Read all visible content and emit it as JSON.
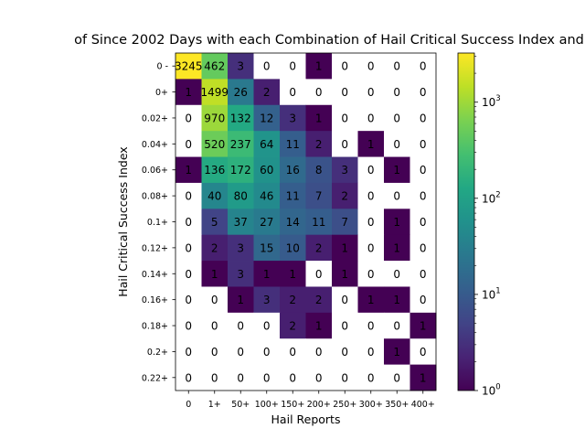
{
  "chart_data": {
    "type": "heatmap",
    "title": "of Since 2002 Days with each Combination of Hail Critical Success Index and",
    "xlabel": "Hail Reports",
    "ylabel": "Hail Critical Success Index",
    "x_categories": [
      "0",
      "1+",
      "50+",
      "100+",
      "150+",
      "200+",
      "250+",
      "300+",
      "350+",
      "400+"
    ],
    "y_categories": [
      "0 -",
      "0+",
      "0.02+",
      "0.04+",
      "0.06+",
      "0.08+",
      "0.1+",
      "0.12+",
      "0.14+",
      "0.16+",
      "0.18+",
      "0.2+",
      "0.22+"
    ],
    "values": [
      [
        3245,
        462,
        3,
        0,
        0,
        1,
        0,
        0,
        0,
        0
      ],
      [
        1,
        1499,
        26,
        2,
        0,
        0,
        0,
        0,
        0,
        0
      ],
      [
        0,
        970,
        132,
        12,
        3,
        1,
        0,
        0,
        0,
        0
      ],
      [
        0,
        520,
        237,
        64,
        11,
        2,
        0,
        1,
        0,
        0
      ],
      [
        1,
        136,
        172,
        60,
        16,
        8,
        3,
        0,
        1,
        0
      ],
      [
        0,
        40,
        80,
        46,
        11,
        7,
        2,
        0,
        0,
        0
      ],
      [
        0,
        5,
        37,
        27,
        14,
        11,
        7,
        0,
        1,
        0
      ],
      [
        0,
        2,
        3,
        15,
        10,
        2,
        1,
        0,
        1,
        0
      ],
      [
        0,
        1,
        3,
        1,
        1,
        0,
        1,
        0,
        0,
        0
      ],
      [
        0,
        0,
        1,
        3,
        2,
        2,
        0,
        1,
        1,
        0
      ],
      [
        0,
        0,
        0,
        0,
        2,
        1,
        0,
        0,
        0,
        1
      ],
      [
        0,
        0,
        0,
        0,
        0,
        0,
        0,
        0,
        1,
        0
      ],
      [
        0,
        0,
        0,
        0,
        0,
        0,
        0,
        0,
        0,
        1
      ]
    ],
    "color_scale": "log",
    "colormap": "viridis",
    "colorbar_range": [
      1,
      3245
    ],
    "colorbar_ticks": [
      {
        "value": 1,
        "base": "10",
        "exp": "0"
      },
      {
        "value": 10,
        "base": "10",
        "exp": "1"
      },
      {
        "value": 100,
        "base": "10",
        "exp": "2"
      },
      {
        "value": 1000,
        "base": "10",
        "exp": "3"
      }
    ],
    "zero_color": "#ffffff",
    "grid": false
  }
}
